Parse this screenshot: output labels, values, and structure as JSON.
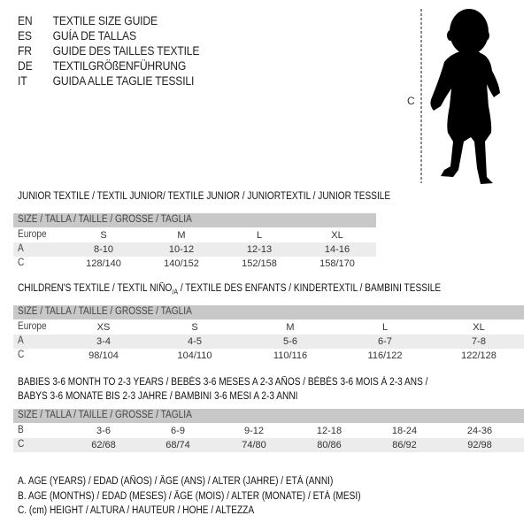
{
  "languages": [
    {
      "code": "EN",
      "title": "TEXTILE SIZE GUIDE"
    },
    {
      "code": "ES",
      "title": "GUÍA DE TALLAS"
    },
    {
      "code": "FR",
      "title": "GUIDE DES TAILLES TEXTILE"
    },
    {
      "code": "DE",
      "title": "TEXTILGRÖßENFÜHRUNG"
    },
    {
      "code": "IT",
      "title": "GUIDA ALLE TAGLIE TESSILI"
    }
  ],
  "figure": {
    "measure_label": "C",
    "icon": "baby-silhouette"
  },
  "size_header": "SIZE / TALLA / TAILLE / GRÖSSE / TAGLIA",
  "junior": {
    "title": "JUNIOR TEXTILE / TEXTIL JUNIOR/ TEXTILE JUNIOR / JUNIORTEXTIL / JUNIOR TESSILE",
    "rows": [
      {
        "label": "Europe",
        "cells": [
          "S",
          "M",
          "L",
          "XL"
        ]
      },
      {
        "label": "A",
        "cells": [
          "8-10",
          "10-12",
          "12-13",
          "14-16"
        ]
      },
      {
        "label": "C",
        "cells": [
          "128/140",
          "140/152",
          "152/158",
          "158/170"
        ]
      }
    ]
  },
  "children": {
    "title_a": "CHILDREN'S TEXTILE / TEXTIL NIÑO",
    "title_sub": "/A",
    "title_b": " / TEXTILE DES ENFANTS / KINDERTEXTIL / BAMBINI TESSILE",
    "rows": [
      {
        "label": "Europe",
        "cells": [
          "XS",
          "S",
          "M",
          "L",
          "XL"
        ]
      },
      {
        "label": "A",
        "cells": [
          "3-4",
          "4-5",
          "5-6",
          "6-7",
          "7-8"
        ]
      },
      {
        "label": "C",
        "cells": [
          "98/104",
          "104/110",
          "110/116",
          "116/122",
          "122/128"
        ]
      }
    ]
  },
  "babies": {
    "title_line1": "BABIES 3-6 MONTH TO 2-3 YEARS / BEBÉS 3-6 MESES A 2-3 AÑOS / BÉBÉS 3-6 MOIS À 2-3 ANS /",
    "title_line2": "BABYS 3-6 MONATE BIS 2-3 JAHRE / BAMBINI 3-6 MESI A 2-3 ANNI",
    "rows": [
      {
        "label": "B",
        "cells": [
          "3-6",
          "6-9",
          "9-12",
          "12-18",
          "18-24",
          "24-36"
        ]
      },
      {
        "label": "C",
        "cells": [
          "62/68",
          "68/74",
          "74/80",
          "80/86",
          "86/92",
          "92/98"
        ]
      }
    ]
  },
  "legend": [
    "A. AGE (YEARS) / EDAD (AÑOS) / ÂGE (ANS) / ALTER (JAHRE) / ETÀ (ANNI)",
    "B. AGE (MONTHS) / EDAD (MESES) / ÂGE (MOIS) / ALTER (MONATE) / ETÀ (MESI)",
    "C. (cm) HEIGHT / ALTURA / HAUTEUR / HÖHE / ALTEZZA"
  ],
  "colors": {
    "header_bg": "#c8c8c8",
    "row_shade": "#ececec"
  }
}
